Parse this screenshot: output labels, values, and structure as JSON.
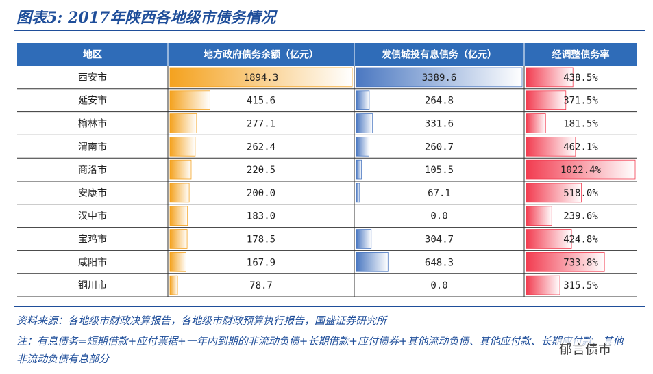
{
  "header": {
    "title": "图表5: 2017年陕西各地级市债务情况"
  },
  "table": {
    "columns": [
      "地区",
      "地方政府债务余额（亿元）",
      "发债城投有息债务（亿元）",
      "经调整债务率"
    ],
    "rows": [
      [
        "西安市",
        "1894.3",
        "3389.6",
        "438.5%"
      ],
      [
        "延安市",
        "415.6",
        "264.8",
        "371.5%"
      ],
      [
        "榆林市",
        "277.1",
        "331.6",
        "181.5%"
      ],
      [
        "渭南市",
        "262.4",
        "260.7",
        "462.1%"
      ],
      [
        "商洛市",
        "220.5",
        "105.5",
        "1022.4%"
      ],
      [
        "安康市",
        "200.0",
        "67.1",
        "518.0%"
      ],
      [
        "汉中市",
        "183.0",
        "0.0",
        "239.6%"
      ],
      [
        "宝鸡市",
        "178.5",
        "304.7",
        "424.8%"
      ],
      [
        "咸阳市",
        "167.9",
        "648.3",
        "733.8%"
      ],
      [
        "铜川市",
        "78.7",
        "0.0",
        "315.5%"
      ]
    ]
  },
  "footer": {
    "source": "资料来源：各地级市财政决算报告，各地级市财政预算执行报告，国盛证券研究所",
    "note": "注：有息债务=短期借款+应付票据+一年内到期的非流动负债+长期借款+应付债券+其他流动负债、其他应付款、长期应付款、其他非流动负债有息部分",
    "watermark": "郁言债市"
  }
}
